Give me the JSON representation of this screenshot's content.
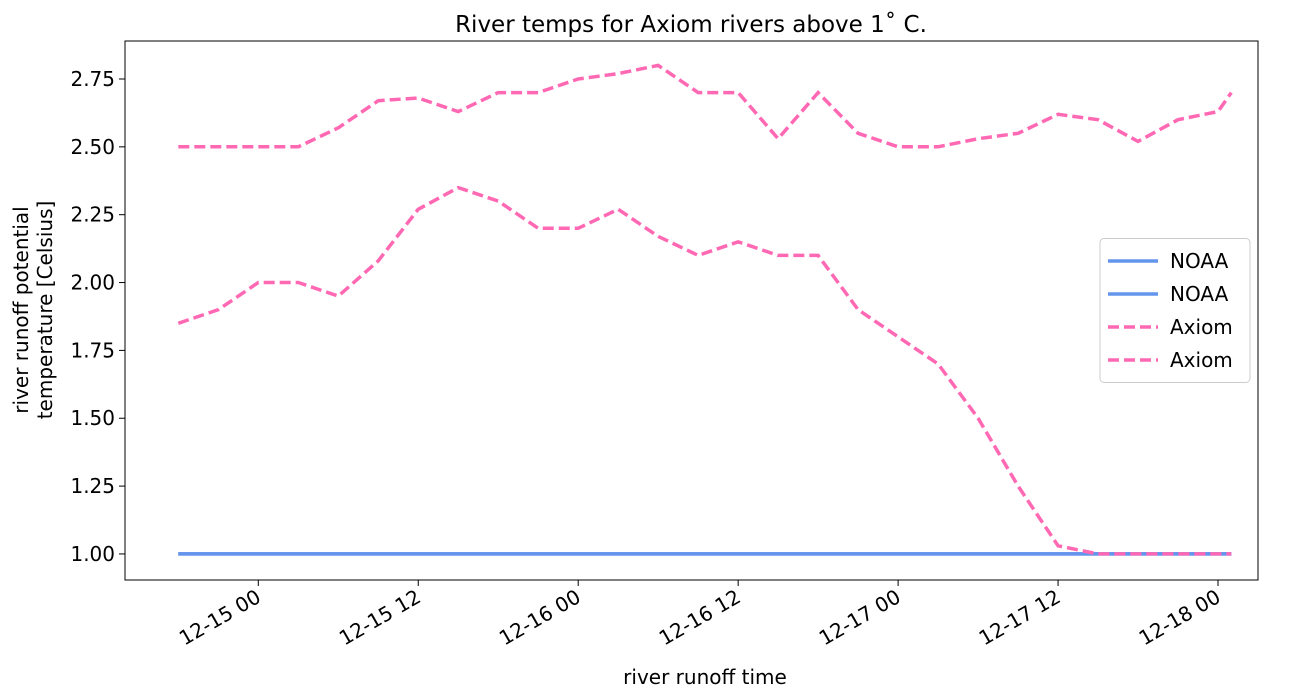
{
  "chart_data": {
    "type": "line",
    "title": "River temps for Axiom rivers above 1˚ C.",
    "xlabel": "river runoff time",
    "ylabel": [
      "river runoff potential",
      "temperature [Celsius]"
    ],
    "x": [
      "12-14 18",
      "12-14 21",
      "12-15 00",
      "12-15 03",
      "12-15 06",
      "12-15 09",
      "12-15 12",
      "12-15 15",
      "12-15 18",
      "12-15 21",
      "12-16 00",
      "12-16 03",
      "12-16 06",
      "12-16 09",
      "12-16 12",
      "12-16 15",
      "12-16 18",
      "12-16 21",
      "12-17 00",
      "12-17 03",
      "12-17 06",
      "12-17 09",
      "12-17 12",
      "12-17 15",
      "12-17 18",
      "12-17 21",
      "12-18 00",
      "12-18 01"
    ],
    "series": [
      {
        "name": "NOAA",
        "color": "#6495ed",
        "dash": false,
        "values": [
          1,
          1,
          1,
          1,
          1,
          1,
          1,
          1,
          1,
          1,
          1,
          1,
          1,
          1,
          1,
          1,
          1,
          1,
          1,
          1,
          1,
          1,
          1,
          1,
          1,
          1,
          1,
          1
        ]
      },
      {
        "name": "NOAA",
        "color": "#6495ed",
        "dash": false,
        "values": [
          1,
          1,
          1,
          1,
          1,
          1,
          1,
          1,
          1,
          1,
          1,
          1,
          1,
          1,
          1,
          1,
          1,
          1,
          1,
          1,
          1,
          1,
          1,
          1,
          1,
          1,
          1,
          1
        ]
      },
      {
        "name": "Axiom",
        "color": "#ff69b4",
        "dash": true,
        "values": [
          1.85,
          1.9,
          2.0,
          2.0,
          1.95,
          2.08,
          2.27,
          2.35,
          2.3,
          2.2,
          2.2,
          2.27,
          2.17,
          2.1,
          2.15,
          2.1,
          2.1,
          1.9,
          1.8,
          1.7,
          1.5,
          1.25,
          1.03,
          1.0,
          1.0,
          1.0,
          1.0,
          1.0
        ]
      },
      {
        "name": "Axiom",
        "color": "#ff69b4",
        "dash": true,
        "values": [
          2.5,
          2.5,
          2.5,
          2.5,
          2.57,
          2.67,
          2.68,
          2.63,
          2.7,
          2.7,
          2.75,
          2.77,
          2.8,
          2.7,
          2.7,
          2.53,
          2.7,
          2.55,
          2.5,
          2.5,
          2.53,
          2.55,
          2.62,
          2.6,
          2.52,
          2.6,
          2.63,
          2.7
        ]
      }
    ],
    "xlim": [
      "12-14 14",
      "12-18 03"
    ],
    "xticks": [
      "12-15 00",
      "12-15 12",
      "12-16 00",
      "12-16 12",
      "12-17 00",
      "12-17 12",
      "12-18 00"
    ],
    "ylim": [
      0.904,
      2.89
    ],
    "yticks": [
      {
        "value": 1,
        "label": "1.00"
      },
      1.25,
      {
        "value": 1.5,
        "label": "1.50"
      },
      1.75,
      {
        "value": 2,
        "label": "2.00"
      },
      2.25,
      {
        "value": 2.5,
        "label": "2.50"
      },
      2.75
    ],
    "legend": "center right"
  }
}
